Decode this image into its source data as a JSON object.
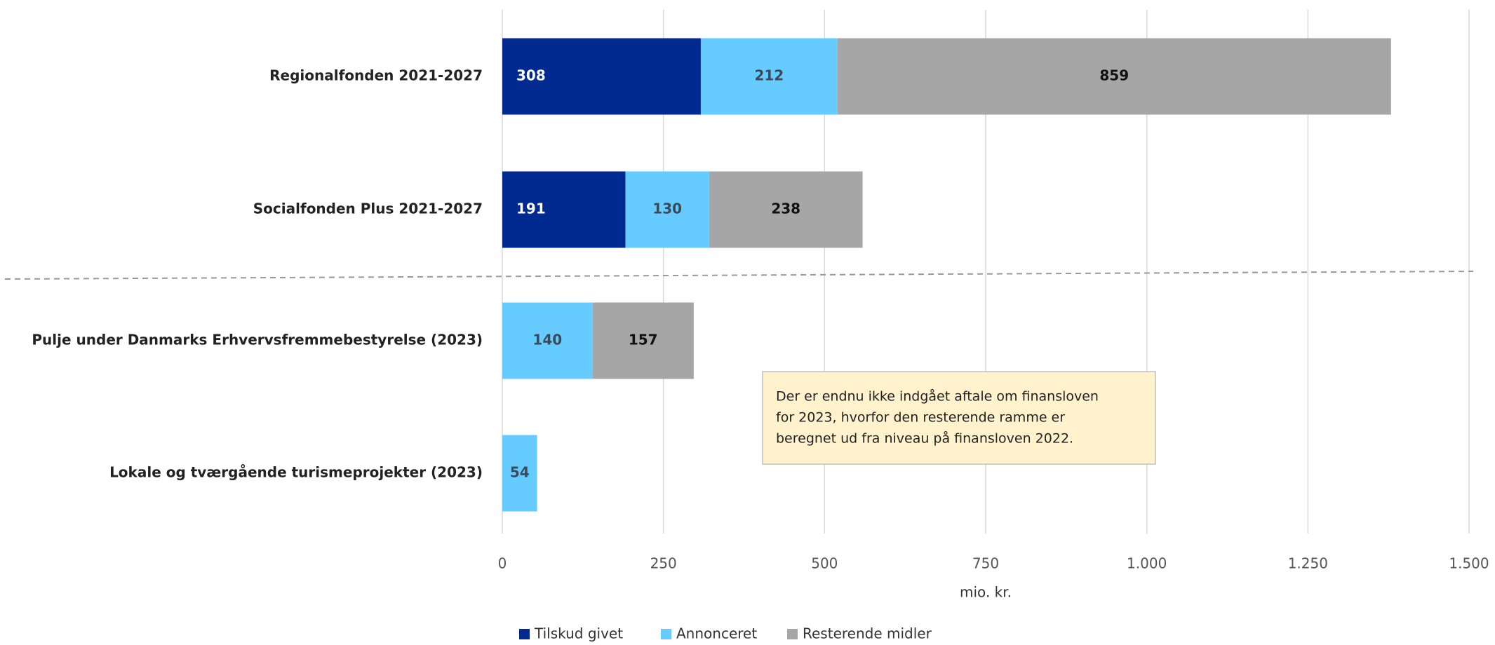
{
  "chart_data": {
    "type": "stacked_barh",
    "categories": [
      "Regionalfonden 2021-2027",
      "Socialfonden Plus 2021-2027",
      "Pulje under Danmarks Erhvervsfremmebestyrelse (2023)",
      "Lokale og tværgående turismeprojekter (2023)"
    ],
    "series": [
      {
        "name": "Tilskud givet",
        "color": "#002a8f",
        "values": [
          308,
          191,
          null,
          null
        ]
      },
      {
        "name": "Annonceret",
        "color": "#66ccff",
        "values": [
          212,
          130,
          140,
          54
        ]
      },
      {
        "name": "Resterende midler",
        "color": "#a6a6a6",
        "values": [
          859,
          238,
          157,
          null
        ]
      }
    ],
    "xlim": [
      0,
      1500
    ],
    "xticks": [
      0,
      250,
      500,
      750,
      {
        "value": 1000,
        "label": "1.000"
      },
      {
        "value": 1250,
        "label": "1.250"
      },
      {
        "value": 1500,
        "label": "1.500"
      }
    ],
    "xlabel": "mio. kr.",
    "grid": true,
    "legend": "bottom",
    "annotation": [
      "Der er endnu ikke indgået aftale om finansloven",
      "for 2023, hvorfor den resterende ramme er",
      "beregnet ud fra niveau på finansloven 2022."
    ]
  }
}
